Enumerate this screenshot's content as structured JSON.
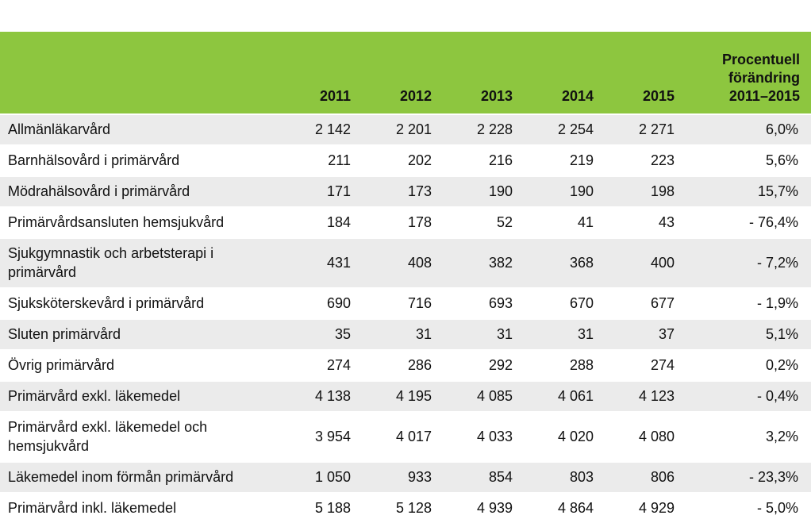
{
  "header": {
    "label": "",
    "years": [
      "2011",
      "2012",
      "2013",
      "2014",
      "2015"
    ],
    "pct_line1": "Procentuell",
    "pct_line2": "förändring",
    "pct_line3": "2011–2015"
  },
  "rows": [
    {
      "label": "Allmänläkarvård",
      "values": [
        "2 142",
        "2 201",
        "2 228",
        "2 254",
        "2 271"
      ],
      "pct": "6,0%"
    },
    {
      "label": "Barnhälsovård i primärvård",
      "values": [
        "211",
        "202",
        "216",
        "219",
        "223"
      ],
      "pct": "5,6%"
    },
    {
      "label": "Mödrahälsovård i primärvård",
      "values": [
        "171",
        "173",
        "190",
        "190",
        "198"
      ],
      "pct": "15,7%"
    },
    {
      "label": "Primärvårdsansluten hemsjukvård",
      "values": [
        "184",
        "178",
        "52",
        "41",
        "43"
      ],
      "pct": "- 76,4%"
    },
    {
      "label": "Sjukgymnastik och arbetsterapi i primärvård",
      "values": [
        "431",
        "408",
        "382",
        "368",
        "400"
      ],
      "pct": "- 7,2%"
    },
    {
      "label": "Sjuksköterskevård i primärvård",
      "values": [
        "690",
        "716",
        "693",
        "670",
        "677"
      ],
      "pct": "- 1,9%"
    },
    {
      "label": "Sluten primärvård",
      "values": [
        "35",
        "31",
        "31",
        "31",
        "37"
      ],
      "pct": "5,1%"
    },
    {
      "label": "Övrig primärvård",
      "values": [
        "274",
        "286",
        "292",
        "288",
        "274"
      ],
      "pct": "0,2%"
    },
    {
      "label": "Primärvård exkl. läkemedel",
      "values": [
        "4 138",
        "4 195",
        "4 085",
        "4 061",
        "4 123"
      ],
      "pct": "- 0,4%"
    },
    {
      "label": "Primärvård exkl. läkemedel och hemsjukvård",
      "values": [
        "3 954",
        "4 017",
        "4 033",
        "4 020",
        "4 080"
      ],
      "pct": "3,2%"
    },
    {
      "label": "Läkemedel inom förmån primärvård",
      "values": [
        "1 050",
        "933",
        "854",
        "803",
        "806"
      ],
      "pct": "- 23,3%"
    },
    {
      "label": "Primärvård inkl. läkemedel",
      "values": [
        "5 188",
        "5 128",
        "4 939",
        "4 864",
        "4 929"
      ],
      "pct": "- 5,0%"
    }
  ],
  "colors": {
    "header_bg": "#8dc63f",
    "row_alt_bg": "#ebebeb",
    "row_bg": "#ffffff"
  }
}
